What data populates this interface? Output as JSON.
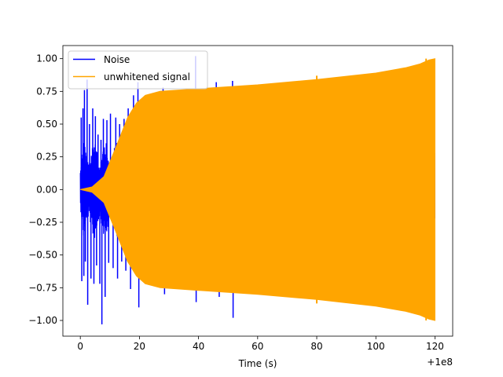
{
  "chart_data": {
    "type": "line",
    "title": "",
    "xlabel": "Time (s)",
    "ylabel": "",
    "x_offset_label": "+1e8",
    "xlim": [
      -5.9,
      126
    ],
    "ylim": [
      -1.12,
      1.1
    ],
    "xticks": [
      0,
      20,
      40,
      60,
      80,
      100,
      120
    ],
    "xtick_labels": [
      "0",
      "20",
      "40",
      "60",
      "80",
      "100",
      "120"
    ],
    "yticks": [
      1.0,
      0.75,
      0.5,
      0.25,
      0.0,
      -0.25,
      -0.5,
      -0.75,
      -1.0
    ],
    "ytick_labels": [
      "1.00",
      "0.75",
      "0.50",
      "0.25",
      "0.00",
      "−0.25",
      "−0.50",
      "−0.75",
      "−1.00"
    ],
    "grid": false,
    "legend_position": "upper-left",
    "series": [
      {
        "name": "Noise",
        "color": "#0000ff",
        "kind": "noise-spikes",
        "x_range": [
          0,
          120
        ],
        "spikes": [
          {
            "x": 0.3,
            "y": 0.55
          },
          {
            "x": 0.5,
            "y": -0.7
          },
          {
            "x": 0.9,
            "y": 0.62
          },
          {
            "x": 1.2,
            "y": -0.66
          },
          {
            "x": 1.4,
            "y": 0.76
          },
          {
            "x": 1.7,
            "y": -0.55
          },
          {
            "x": 2.3,
            "y": 0.84
          },
          {
            "x": 2.5,
            "y": -0.88
          },
          {
            "x": 3.1,
            "y": 0.5
          },
          {
            "x": 3.6,
            "y": -0.68
          },
          {
            "x": 4.2,
            "y": 0.62
          },
          {
            "x": 4.6,
            "y": -0.72
          },
          {
            "x": 5.1,
            "y": 0.56
          },
          {
            "x": 5.5,
            "y": -0.58
          },
          {
            "x": 6.0,
            "y": 0.42
          },
          {
            "x": 6.6,
            "y": -0.72
          },
          {
            "x": 7.0,
            "y": 0.38
          },
          {
            "x": 7.3,
            "y": -1.03
          },
          {
            "x": 7.8,
            "y": 0.54
          },
          {
            "x": 8.4,
            "y": -0.82
          },
          {
            "x": 9.0,
            "y": 0.53
          },
          {
            "x": 9.6,
            "y": -0.56
          },
          {
            "x": 10.2,
            "y": 0.58
          },
          {
            "x": 11.1,
            "y": -0.6
          },
          {
            "x": 12.0,
            "y": 0.55
          },
          {
            "x": 12.6,
            "y": -0.68
          },
          {
            "x": 13.3,
            "y": 0.5
          },
          {
            "x": 14.0,
            "y": -0.55
          },
          {
            "x": 14.8,
            "y": 0.54
          },
          {
            "x": 15.4,
            "y": -0.62
          },
          {
            "x": 16.2,
            "y": 0.62
          },
          {
            "x": 17.0,
            "y": -0.76
          },
          {
            "x": 18.0,
            "y": 0.72
          },
          {
            "x": 19.5,
            "y": 0.82
          },
          {
            "x": 19.8,
            "y": -0.9
          },
          {
            "x": 28.0,
            "y": 0.78
          },
          {
            "x": 28.5,
            "y": -0.8
          },
          {
            "x": 39.0,
            "y": 1.02
          },
          {
            "x": 39.2,
            "y": -0.86
          },
          {
            "x": 46.0,
            "y": 0.82
          },
          {
            "x": 47.0,
            "y": -0.82
          },
          {
            "x": 51.5,
            "y": 0.83
          },
          {
            "x": 51.7,
            "y": -0.98
          }
        ]
      },
      {
        "name": "unwhitened signal",
        "color": "#ffa500",
        "kind": "envelope",
        "envelope": [
          {
            "x": 0,
            "y": 0.0
          },
          {
            "x": 4,
            "y": 0.02
          },
          {
            "x": 8,
            "y": 0.1
          },
          {
            "x": 12,
            "y": 0.32
          },
          {
            "x": 16,
            "y": 0.55
          },
          {
            "x": 19,
            "y": 0.66
          },
          {
            "x": 22,
            "y": 0.72
          },
          {
            "x": 27,
            "y": 0.75
          },
          {
            "x": 40,
            "y": 0.77
          },
          {
            "x": 60,
            "y": 0.8
          },
          {
            "x": 80,
            "y": 0.84
          },
          {
            "x": 100,
            "y": 0.89
          },
          {
            "x": 110,
            "y": 0.93
          },
          {
            "x": 115,
            "y": 0.96
          },
          {
            "x": 118,
            "y": 0.99
          },
          {
            "x": 120,
            "y": 1.0
          }
        ]
      }
    ]
  }
}
